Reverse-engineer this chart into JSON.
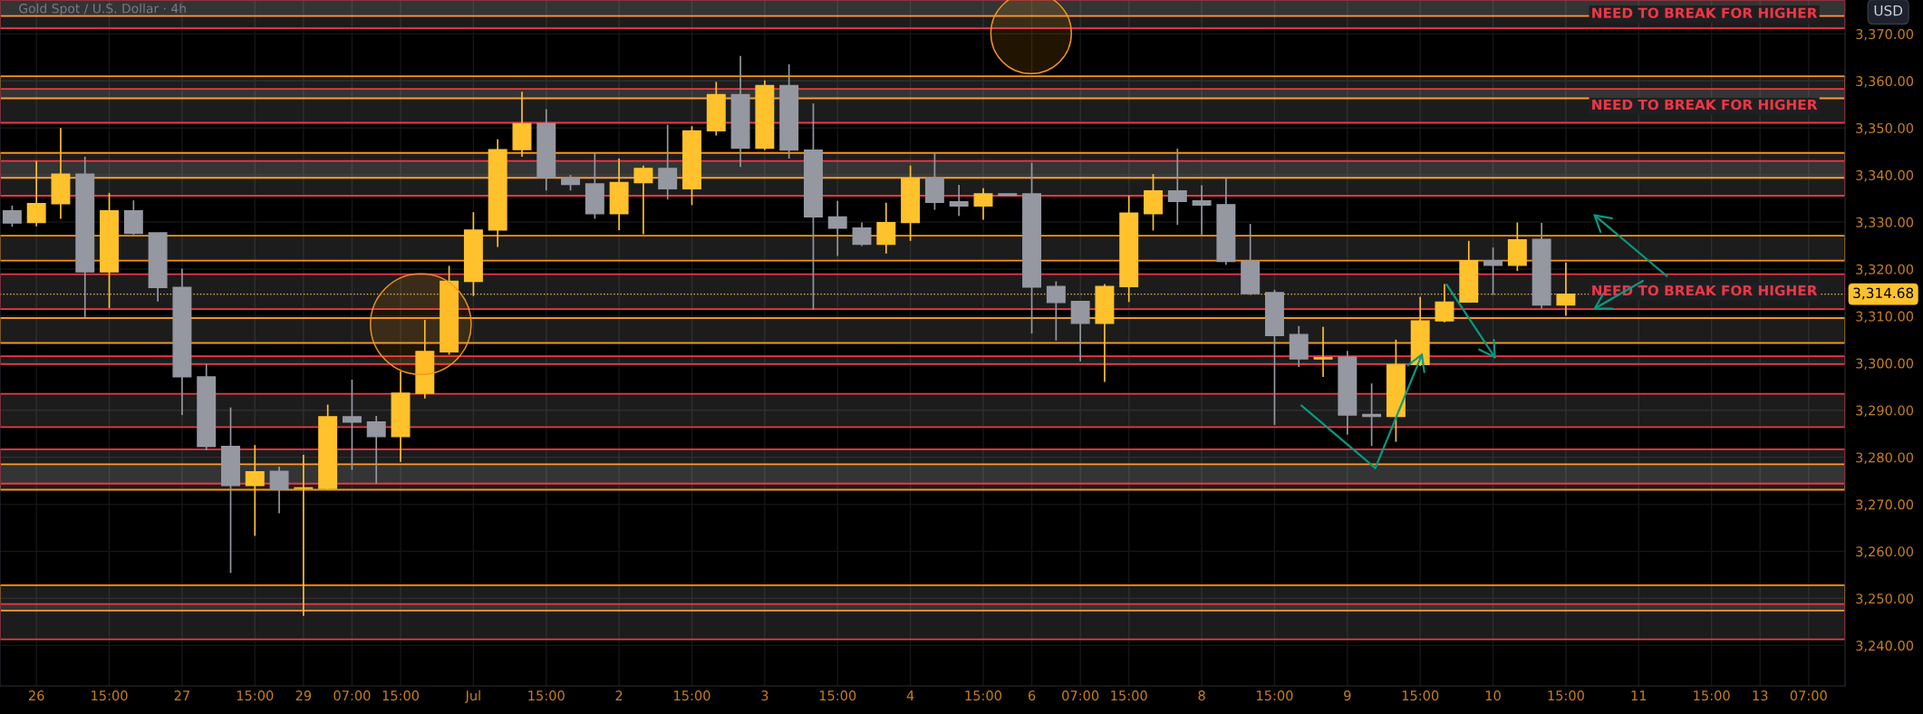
{
  "chart_data": {
    "type": "candlestick",
    "title": "Gold Spot / U.S. Dollar · 4h",
    "categories": [
      null,
      "26",
      null,
      null,
      "15:00",
      null,
      null,
      "27",
      null,
      null,
      "15:00",
      null,
      "29",
      null,
      "07:00",
      null,
      "15:00",
      null,
      null,
      "Jul",
      null,
      null,
      "15:00",
      null,
      null,
      "2",
      null,
      null,
      "15:00",
      null,
      null,
      "3",
      null,
      null,
      "15:00",
      null,
      null,
      "4",
      null,
      null,
      "15:00",
      null,
      "6",
      null,
      "07:00",
      null,
      "15:00",
      null,
      null,
      "8",
      null,
      null,
      "15:00",
      null,
      null,
      "9",
      null,
      null,
      "15:00",
      null,
      null,
      "10",
      null,
      null,
      "15:00",
      null,
      null,
      "11",
      null,
      null,
      "15:00",
      null,
      "13",
      null,
      "07:00",
      null
    ],
    "ohlc": [
      [
        3332.4,
        3333.5,
        3329.0,
        3329.8
      ],
      [
        3329.9,
        3343.0,
        3329.1,
        3333.9
      ],
      [
        3333.9,
        3350.0,
        3330.7,
        3340.2
      ],
      [
        3340.2,
        3343.9,
        3309.8,
        3319.4
      ],
      [
        3319.4,
        3336.2,
        3311.7,
        3332.4
      ],
      [
        3332.4,
        3334.6,
        3327.3,
        3327.6
      ],
      [
        3327.7,
        3327.7,
        3313.1,
        3316.1
      ],
      [
        3316.1,
        3320.1,
        3289.0,
        3297.1
      ],
      [
        3297.1,
        3299.8,
        3281.5,
        3282.3
      ],
      [
        3282.3,
        3290.6,
        3255.4,
        3274.0
      ],
      [
        3274.0,
        3282.6,
        3263.3,
        3276.9
      ],
      [
        3277.0,
        3278.0,
        3268.1,
        3273.2
      ],
      [
        3273.4,
        3280.5,
        3246.3,
        3273.5
      ],
      [
        3273.4,
        3291.2,
        3273.2,
        3288.6
      ],
      [
        3288.6,
        3296.5,
        3277.3,
        3287.5
      ],
      [
        3287.5,
        3288.8,
        3274.4,
        3284.4
      ],
      [
        3284.4,
        3298.3,
        3279.0,
        3293.6
      ],
      [
        3293.6,
        3309.2,
        3292.5,
        3302.5
      ],
      [
        3302.4,
        3320.7,
        3301.8,
        3317.4
      ],
      [
        3317.4,
        3332.1,
        3314.3,
        3328.3
      ],
      [
        3328.3,
        3347.6,
        3324.7,
        3345.4
      ],
      [
        3345.4,
        3357.7,
        3343.9,
        3350.9
      ],
      [
        3350.9,
        3354.0,
        3336.7,
        3339.5
      ],
      [
        3339.3,
        3340.0,
        3336.7,
        3338.0
      ],
      [
        3338.1,
        3344.7,
        3330.7,
        3331.8
      ],
      [
        3331.8,
        3343.5,
        3328.3,
        3338.4
      ],
      [
        3338.4,
        3342.0,
        3327.4,
        3341.4
      ],
      [
        3341.4,
        3350.7,
        3334.8,
        3337.1
      ],
      [
        3337.1,
        3350.4,
        3333.6,
        3349.4
      ],
      [
        3349.4,
        3359.8,
        3348.4,
        3357.1
      ],
      [
        3357.1,
        3365.3,
        3341.7,
        3345.7
      ],
      [
        3345.7,
        3360.1,
        3345.3,
        3359.0
      ],
      [
        3359.0,
        3363.5,
        3343.5,
        3345.3
      ],
      [
        3345.3,
        3355.2,
        3311.4,
        3331.1
      ],
      [
        3331.1,
        3334.5,
        3322.8,
        3328.7
      ],
      [
        3328.7,
        3329.9,
        3324.9,
        3325.3
      ],
      [
        3325.3,
        3334.1,
        3323.3,
        3329.9
      ],
      [
        3329.9,
        3342.0,
        3326.0,
        3339.3
      ],
      [
        3339.3,
        3344.7,
        3332.6,
        3334.2
      ],
      [
        3334.3,
        3337.9,
        3331.3,
        3333.4
      ],
      [
        3333.4,
        3337.2,
        3330.5,
        3336.0
      ],
      [
        3336.0,
        3336.0,
        3335.7,
        3335.7
      ],
      [
        3336.0,
        3342.6,
        3306.3,
        3316.2
      ],
      [
        3316.3,
        3317.4,
        3304.8,
        3312.9
      ],
      [
        3313.1,
        3313.1,
        3300.4,
        3308.5
      ],
      [
        3308.5,
        3316.8,
        3296.0,
        3316.3
      ],
      [
        3316.3,
        3335.6,
        3313.0,
        3331.9
      ],
      [
        3331.8,
        3340.2,
        3328.2,
        3336.6
      ],
      [
        3336.6,
        3345.6,
        3329.4,
        3334.4
      ],
      [
        3334.5,
        3337.8,
        3327.2,
        3333.6
      ],
      [
        3333.7,
        3339.3,
        3320.9,
        3321.6
      ],
      [
        3321.7,
        3329.6,
        3314.5,
        3314.8
      ],
      [
        3315.0,
        3315.6,
        3286.9,
        3305.9
      ],
      [
        3306.1,
        3307.9,
        3299.2,
        3300.9
      ],
      [
        3300.9,
        3307.7,
        3297.1,
        3301.2
      ],
      [
        3301.3,
        3302.6,
        3284.8,
        3289.0
      ],
      [
        3289.1,
        3295.7,
        3282.4,
        3288.7
      ],
      [
        3288.7,
        3305.0,
        3283.3,
        3299.7
      ],
      [
        3299.7,
        3314.1,
        3299.4,
        3309.0
      ],
      [
        3309.0,
        3316.8,
        3308.7,
        3313.0
      ],
      [
        3313.0,
        3326.0,
        3313.0,
        3321.8
      ],
      [
        3321.8,
        3324.6,
        3314.5,
        3320.8
      ],
      [
        3320.8,
        3329.9,
        3319.6,
        3326.2
      ],
      [
        3326.3,
        3329.8,
        3311.6,
        3312.4
      ],
      [
        3312.4,
        3321.4,
        3310.1,
        3314.68
      ],
      null,
      null,
      null,
      null,
      null,
      null,
      null,
      null,
      null,
      null,
      null
    ],
    "colors": [
      "#9598a1",
      "#ffc22c",
      "#ffc22c",
      "#9598a1",
      "#ffc22c",
      "#9598a1",
      "#9598a1",
      "#9598a1",
      "#9598a1",
      "#9598a1",
      "#ffc22c",
      "#9598a1",
      "#ffc22c",
      "#ffc22c",
      "#9598a1",
      "#9598a1",
      "#ffc22c",
      "#ffc22c",
      "#ffc22c",
      "#ffc22c",
      "#ffc22c",
      "#ffc22c",
      "#9598a1",
      "#9598a1",
      "#9598a1",
      "#ffc22c",
      "#ffc22c",
      "#9598a1",
      "#ffc22c",
      "#ffc22c",
      "#9598a1",
      "#ffc22c",
      "#9598a1",
      "#9598a1",
      "#9598a1",
      "#9598a1",
      "#ffc22c",
      "#ffc22c",
      "#9598a1",
      "#9598a1",
      "#ffc22c",
      "#9598a1",
      "#9598a1",
      "#9598a1",
      "#9598a1",
      "#ffc22c",
      "#ffc22c",
      "#ffc22c",
      "#9598a1",
      "#9598a1",
      "#9598a1",
      "#9598a1",
      "#9598a1",
      "#9598a1",
      "#ffc22c",
      "#9598a1",
      "#9598a1",
      "#ffc22c",
      "#ffc22c",
      "#ffc22c",
      "#ffc22c",
      "#9598a1",
      "#ffc22c",
      "#9598a1",
      "#ffc22c",
      null,
      null,
      null,
      null,
      null,
      null,
      null,
      null,
      null,
      null,
      null
    ],
    "ylim": [
      3231.4,
      3377.2
    ],
    "yticks": [
      {
        "value": 3240,
        "label": "3,240.00"
      },
      {
        "value": 3250,
        "label": "3,250.00"
      },
      {
        "value": 3260,
        "label": "3,260.00"
      },
      {
        "value": 3270,
        "label": "3,270.00"
      },
      {
        "value": 3280,
        "label": "3,280.00"
      },
      {
        "value": 3290,
        "label": "3,290.00"
      },
      {
        "value": 3300,
        "label": "3,300.00"
      },
      {
        "value": 3310,
        "label": "3,310.00"
      },
      {
        "value": 3320,
        "label": "3,320.00"
      },
      {
        "value": 3330,
        "label": "3,330.00"
      },
      {
        "value": 3340,
        "label": "3,340.00"
      },
      {
        "value": 3350,
        "label": "3,350.00"
      },
      {
        "value": 3360,
        "label": "3,360.00"
      },
      {
        "value": 3370,
        "label": "3,370.00"
      }
    ],
    "grid": true,
    "bands": [
      {
        "axis": "y",
        "from": 3373.8,
        "to": 3377.2,
        "color": "#f7931a"
      },
      {
        "axis": "y",
        "from": 3356.3,
        "to": 3361.0,
        "color": "#f7931a"
      },
      {
        "axis": "y",
        "from": 3339.4,
        "to": 3344.7,
        "color": "#f7931a"
      },
      {
        "axis": "y",
        "from": 3321.8,
        "to": 3327.1,
        "color": "#f7931a"
      },
      {
        "axis": "y",
        "from": 3304.3,
        "to": 3309.6,
        "color": "#f7931a"
      },
      {
        "axis": "y",
        "from": 3273.1,
        "to": 3278.5,
        "color": "#f7931a"
      },
      {
        "axis": "y",
        "from": 3247.4,
        "to": 3252.8,
        "color": "#f7931a"
      },
      {
        "axis": "y",
        "from": 3371.2,
        "to": 3377.2,
        "color": "#f23645",
        "label": "NEED TO BREAK FOR HIGHER"
      },
      {
        "axis": "y",
        "from": 3351.1,
        "to": 3358.3,
        "color": "#f23645",
        "label": "NEED TO BREAK FOR HIGHER"
      },
      {
        "axis": "y",
        "from": 3335.6,
        "to": 3343.0,
        "color": "#f23645"
      },
      {
        "axis": "y",
        "from": 3311.5,
        "to": 3318.9,
        "color": "#f23645",
        "label": "NEED TO BREAK FOR HIGHER"
      },
      {
        "axis": "y",
        "from": 3299.8,
        "to": 3301.5,
        "color": "#f23645"
      },
      {
        "axis": "y",
        "from": 3286.4,
        "to": 3293.5,
        "color": "#f23645"
      },
      {
        "axis": "y",
        "from": 3274.4,
        "to": 3281.7,
        "color": "#f23645"
      },
      {
        "axis": "y",
        "from": 3241.3,
        "to": 3248.8,
        "color": "#f23645"
      }
    ],
    "ref_lines": [
      {
        "axis": "y",
        "value": 3314.68,
        "label": "3,314.68",
        "color": "#ffc22c",
        "line_style": "dotted"
      }
    ],
    "annotations": [
      "USD"
    ]
  }
}
